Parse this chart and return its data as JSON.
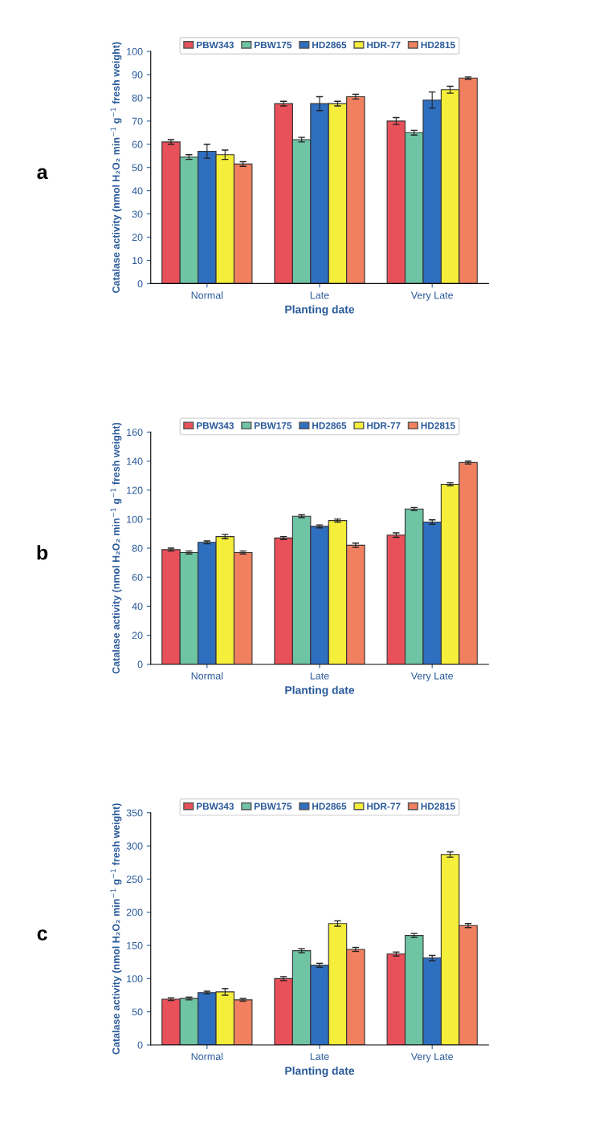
{
  "chart_data": [
    {
      "type": "bar",
      "title": "a",
      "xlabel": "Planting date",
      "ylabel": "Catalase activity (nmol H₂O₂ min$^{−1}$ g$^{−1}$ fresh weight)",
      "categories": [
        "Normal",
        "Late",
        "Very Late"
      ],
      "ylim": [
        0,
        100
      ],
      "yticks": [
        0,
        10,
        20,
        30,
        40,
        50,
        60,
        70,
        80,
        90,
        100
      ],
      "grid": false,
      "legend": "top",
      "series": [
        {
          "name": "PBW343",
          "color": "#e8505a",
          "values": [
            61,
            77.5,
            70
          ],
          "errors": [
            1,
            1,
            1.5
          ]
        },
        {
          "name": "PBW175",
          "color": "#6fc4a4",
          "values": [
            54.5,
            62,
            65
          ],
          "errors": [
            1,
            1,
            1
          ]
        },
        {
          "name": "HD2865",
          "color": "#2f6fc0",
          "values": [
            57,
            77.5,
            79
          ],
          "errors": [
            3,
            3,
            3.5
          ]
        },
        {
          "name": "HDR-77",
          "color": "#f5ee3a",
          "values": [
            55.5,
            77.5,
            83.5
          ],
          "errors": [
            2,
            1,
            1.5
          ]
        },
        {
          "name": "HD2815",
          "color": "#f08060",
          "values": [
            51.5,
            80.5,
            88.5
          ],
          "errors": [
            1,
            1,
            0.5
          ]
        }
      ]
    },
    {
      "type": "bar",
      "title": "b",
      "xlabel": "Planting date",
      "ylabel": "Catalase activity (nmol H₂O₂ min$^{−1}$ g$^{−1}$ fresh weight)",
      "categories": [
        "Normal",
        "Late",
        "Very Late"
      ],
      "ylim": [
        0,
        160
      ],
      "yticks": [
        0,
        20,
        40,
        60,
        80,
        100,
        120,
        140,
        160
      ],
      "grid": false,
      "legend": "top",
      "series": [
        {
          "name": "PBW343",
          "color": "#e8505a",
          "values": [
            79,
            87,
            89
          ],
          "errors": [
            1,
            1,
            1.5
          ]
        },
        {
          "name": "PBW175",
          "color": "#6fc4a4",
          "values": [
            77,
            102,
            107
          ],
          "errors": [
            1,
            1,
            1
          ]
        },
        {
          "name": "HD2865",
          "color": "#2f6fc0",
          "values": [
            84,
            95,
            98
          ],
          "errors": [
            1,
            1,
            1.5
          ]
        },
        {
          "name": "HDR-77",
          "color": "#f5ee3a",
          "values": [
            88,
            99,
            124
          ],
          "errors": [
            1.5,
            1,
            1
          ]
        },
        {
          "name": "HD2815",
          "color": "#f08060",
          "values": [
            77,
            82,
            139
          ],
          "errors": [
            1,
            1.5,
            1
          ]
        }
      ]
    },
    {
      "type": "bar",
      "title": "c",
      "xlabel": "Planting date",
      "ylabel": "Catalase activity (nmol H₂O₂ min$^{−1}$ g$^{−1}$ fresh weight)",
      "categories": [
        "Normal",
        "Late",
        "Very Late"
      ],
      "ylim": [
        0,
        350
      ],
      "yticks": [
        0,
        50,
        100,
        150,
        200,
        250,
        300,
        350
      ],
      "grid": false,
      "legend": "top",
      "series": [
        {
          "name": "PBW343",
          "color": "#e8505a",
          "values": [
            69,
            100,
            137
          ],
          "errors": [
            2,
            3,
            3
          ]
        },
        {
          "name": "PBW175",
          "color": "#6fc4a4",
          "values": [
            70,
            142,
            165
          ],
          "errors": [
            2,
            3,
            3
          ]
        },
        {
          "name": "HD2865",
          "color": "#2f6fc0",
          "values": [
            79,
            120,
            131
          ],
          "errors": [
            2,
            3,
            4
          ]
        },
        {
          "name": "HDR-77",
          "color": "#f5ee3a",
          "values": [
            80,
            183,
            287
          ],
          "errors": [
            5,
            4,
            4
          ]
        },
        {
          "name": "HD2815",
          "color": "#f08060",
          "values": [
            68,
            144,
            180
          ],
          "errors": [
            2,
            3,
            3
          ]
        }
      ]
    }
  ]
}
